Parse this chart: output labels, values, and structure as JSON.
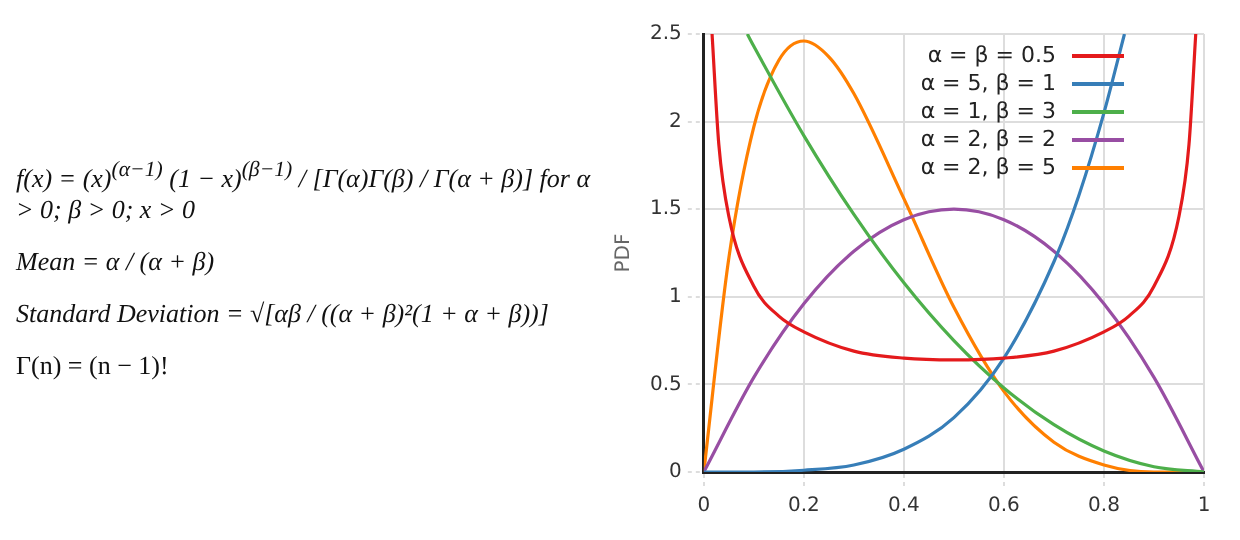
{
  "chart_data": {
    "type": "line",
    "ylabel": "PDF",
    "xlim": [
      0,
      1
    ],
    "xticks": [
      0,
      0.2,
      0.4,
      0.6,
      0.8,
      1
    ],
    "ylim": [
      0,
      2.5
    ],
    "yticks": [
      0,
      0.5,
      1,
      1.5,
      2,
      2.5
    ],
    "grid": true,
    "legend": "top right",
    "marker": "none",
    "line_style": "solid",
    "annotations": [
      "f(x) = (x)$^{(α−1)}$ (1 − x)$^{(β−1)}$ / [Γ(α)Γ(β) / Γ(α + β)]  for α > 0; β > 0; x > 0",
      "Mean = α / (α + β)",
      "Standard Deviation = √[αβ / ((α + β)²(1 + α + β))]",
      "Γ(n) = (n − 1)!"
    ],
    "series": [
      {
        "name": "α = β = 0.5",
        "color": "#e41a1c",
        "x": [
          0.0165,
          0.03,
          0.05,
          0.1,
          0.15,
          0.2,
          0.3,
          0.4,
          0.5,
          0.6,
          0.7,
          0.8,
          0.85,
          0.9,
          0.95,
          0.97,
          0.9835
        ],
        "values": [
          2.5,
          1.87,
          1.46,
          1.06,
          0.89,
          0.8,
          0.69,
          0.65,
          0.64,
          0.65,
          0.69,
          0.8,
          0.89,
          1.06,
          1.46,
          1.87,
          2.5
        ]
      },
      {
        "name": "α = 5, β = 1",
        "color": "#377eb8",
        "x": [
          0,
          0.1,
          0.2,
          0.3,
          0.4,
          0.5,
          0.6,
          0.7,
          0.75,
          0.8,
          0.841
        ],
        "values": [
          0,
          0,
          0.01,
          0.04,
          0.13,
          0.31,
          0.65,
          1.2,
          1.58,
          2.05,
          2.5
        ]
      },
      {
        "name": "α = 1, β = 3",
        "color": "#4daf4a",
        "x": [
          0.087,
          0.1,
          0.2,
          0.3,
          0.4,
          0.5,
          0.6,
          0.7,
          0.8,
          0.9,
          1
        ],
        "values": [
          2.5,
          2.43,
          1.92,
          1.47,
          1.08,
          0.75,
          0.48,
          0.27,
          0.12,
          0.03,
          0
        ]
      },
      {
        "name": "α = 2, β = 2",
        "color": "#984ea3",
        "x": [
          0,
          0.1,
          0.2,
          0.3,
          0.4,
          0.5,
          0.6,
          0.7,
          0.8,
          0.9,
          1
        ],
        "values": [
          0,
          0.54,
          0.96,
          1.26,
          1.44,
          1.5,
          1.44,
          1.26,
          0.96,
          0.54,
          0
        ]
      },
      {
        "name": "α = 2, β = 5",
        "color": "#ff7f00",
        "x": [
          0,
          0.05,
          0.1,
          0.15,
          0.2,
          0.25,
          0.3,
          0.4,
          0.5,
          0.6,
          0.7,
          0.8,
          0.9,
          1
        ],
        "values": [
          0,
          1.22,
          1.97,
          2.35,
          2.46,
          2.37,
          2.16,
          1.56,
          0.94,
          0.46,
          0.17,
          0.04,
          0,
          0
        ]
      }
    ]
  }
}
